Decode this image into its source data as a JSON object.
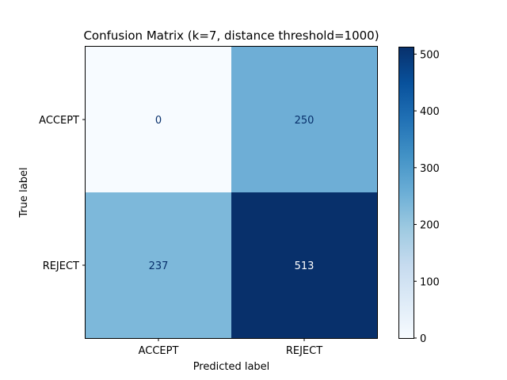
{
  "chart_data": {
    "type": "heatmap",
    "title": "Confusion Matrix (k=7, distance threshold=1000)",
    "xlabel": "Predicted label",
    "ylabel": "True label",
    "x_categories": [
      "ACCEPT",
      "REJECT"
    ],
    "y_categories": [
      "ACCEPT",
      "REJECT"
    ],
    "matrix": [
      [
        0,
        250
      ],
      [
        237,
        513
      ]
    ],
    "colormap": "Blues",
    "colorbar": {
      "min": 0,
      "max": 513,
      "ticks": [
        "0",
        "100",
        "200",
        "300",
        "400",
        "500"
      ]
    }
  },
  "colors": {
    "cell_ACCEPT_ACCEPT": "#f7fbff",
    "cell_ACCEPT_REJECT": "#6eaed6",
    "cell_REJECT_ACCEPT": "#7db8da",
    "cell_REJECT_REJECT": "#08306b",
    "text_dark": "#08306b",
    "text_light": "#ffffff"
  }
}
